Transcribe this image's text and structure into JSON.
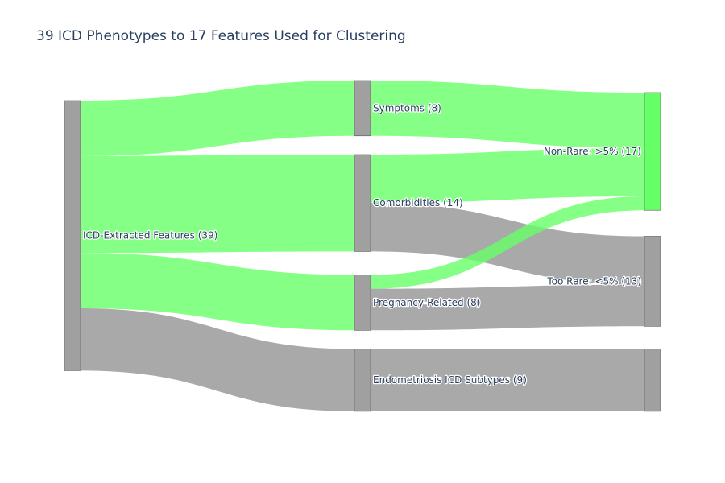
{
  "chart_data": {
    "type": "sankey",
    "title": "39 ICD Phenotypes to 17 Features Used for Clustering",
    "nodes": [
      {
        "id": "icd",
        "label": "ICD-Extracted Features (39)",
        "value": 39,
        "column": 0,
        "color": "#a0a0a0"
      },
      {
        "id": "symptoms",
        "label": "Symptoms (8)",
        "value": 8,
        "column": 1,
        "color": "#a0a0a0"
      },
      {
        "id": "comorbidities",
        "label": "Comorbidities (14)",
        "value": 14,
        "column": 1,
        "color": "#a0a0a0"
      },
      {
        "id": "pregnancy",
        "label": "Pregnancy-Related (8)",
        "value": 8,
        "column": 1,
        "color": "#a0a0a0"
      },
      {
        "id": "endo",
        "label": "Endometriosis ICD Subtypes (9)",
        "value": 9,
        "column": 1,
        "color": "#a0a0a0"
      },
      {
        "id": "nonrare",
        "label": "Non-Rare: >5% (17)",
        "value": 17,
        "column": 2,
        "color": "#66ff66"
      },
      {
        "id": "toorare",
        "label": "Too Rare: <5% (13)",
        "value": 13,
        "column": 2,
        "color": "#a0a0a0"
      },
      {
        "id": "endo_out",
        "label": "",
        "value": 9,
        "column": 2,
        "color": "#a0a0a0"
      }
    ],
    "links": [
      {
        "source": "icd",
        "target": "symptoms",
        "value": 8,
        "color": "#66ff66"
      },
      {
        "source": "icd",
        "target": "comorbidities",
        "value": 14,
        "color": "#66ff66"
      },
      {
        "source": "icd",
        "target": "pregnancy",
        "value": 8,
        "color": "#66ff66"
      },
      {
        "source": "icd",
        "target": "endo",
        "value": 9,
        "color": "#a0a0a0"
      },
      {
        "source": "symptoms",
        "target": "nonrare",
        "value": 8,
        "color": "#66ff66"
      },
      {
        "source": "comorbidities",
        "target": "nonrare",
        "value": 7,
        "color": "#66ff66"
      },
      {
        "source": "comorbidities",
        "target": "toorare",
        "value": 7,
        "color": "#a0a0a0"
      },
      {
        "source": "pregnancy",
        "target": "nonrare",
        "value": 2,
        "color": "#66ff66"
      },
      {
        "source": "pregnancy",
        "target": "toorare",
        "value": 6,
        "color": "#a0a0a0"
      },
      {
        "source": "endo",
        "target": "endo_out",
        "value": 9,
        "color": "#a0a0a0"
      }
    ]
  }
}
